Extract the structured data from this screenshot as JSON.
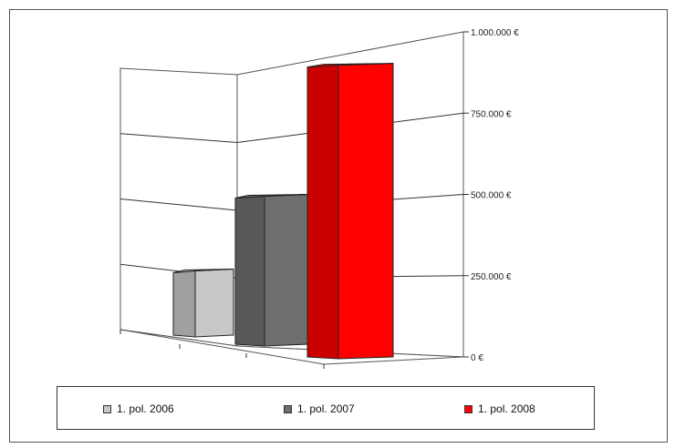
{
  "chart_data": {
    "type": "bar",
    "categories": [
      "1. pol. 2006",
      "1. pol. 2007",
      "1. pol. 2008"
    ],
    "values": [
      250000,
      475000,
      900000
    ],
    "colors": [
      "#c8c8c8",
      "#6e6e6e",
      "#ff0000"
    ],
    "title": "",
    "xlabel": "",
    "ylabel": "",
    "ylim": [
      0,
      1000000
    ],
    "yticks": [
      {
        "value": 0,
        "label": "0 €"
      },
      {
        "value": 250000,
        "label": "250.000 €"
      },
      {
        "value": 500000,
        "label": "500.000 €"
      },
      {
        "value": 750000,
        "label": "750.000 €"
      },
      {
        "value": 1000000,
        "label": "1.000.000 €"
      }
    ],
    "grid": true,
    "legend": "bottom"
  }
}
